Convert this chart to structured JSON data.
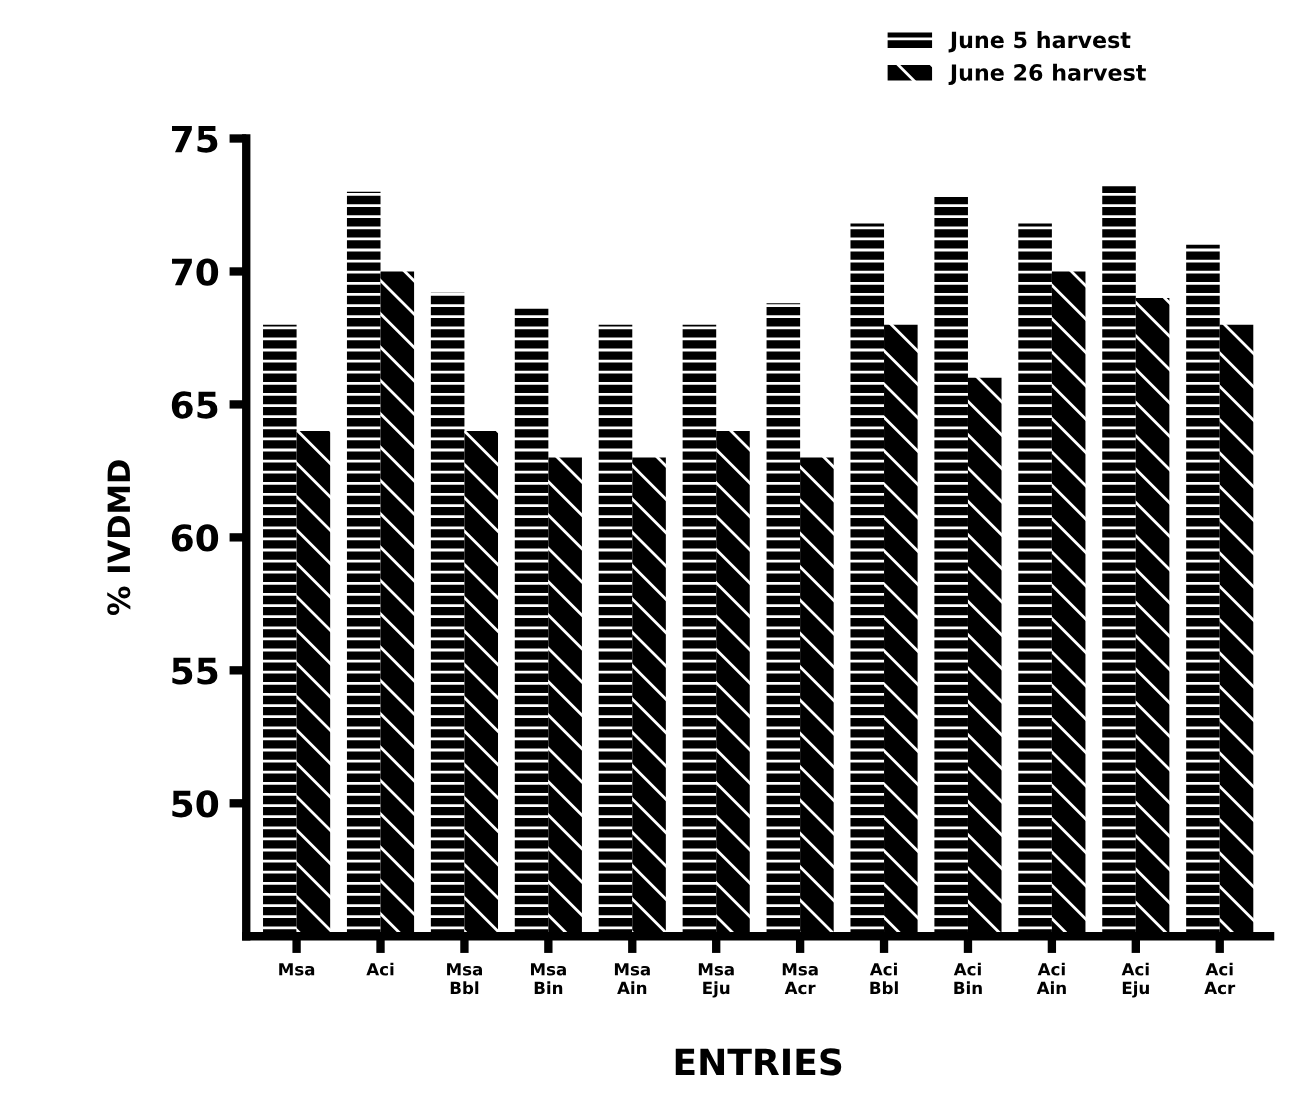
{
  "chart_data": {
    "type": "bar",
    "xlabel": "ENTRIES",
    "ylabel": "% IVDMD",
    "categories": [
      "Msa",
      "Aci",
      "Msa\nBbl",
      "Msa\nBin",
      "Msa\nAin",
      "Msa\nEju",
      "Msa\nAcr",
      "Aci\nBbl",
      "Aci\nBin",
      "Aci\nAin",
      "Aci\nEju",
      "Aci\nAcr"
    ],
    "series": [
      {
        "name": "June 5 harvest",
        "color": "#000000",
        "values": [
          68,
          73,
          69.2,
          68.6,
          68,
          68,
          68.8,
          71.8,
          72.8,
          71.8,
          73.2,
          71
        ]
      },
      {
        "name": "June 26 harvest",
        "color": "#000000",
        "values": [
          64,
          70,
          64,
          63,
          63,
          64,
          63,
          68,
          66,
          70,
          69,
          68
        ]
      }
    ],
    "ylim": [
      45,
      75
    ],
    "yticks": [
      50,
      55,
      60,
      65,
      70,
      75
    ],
    "grid": false,
    "legend": "top right"
  }
}
